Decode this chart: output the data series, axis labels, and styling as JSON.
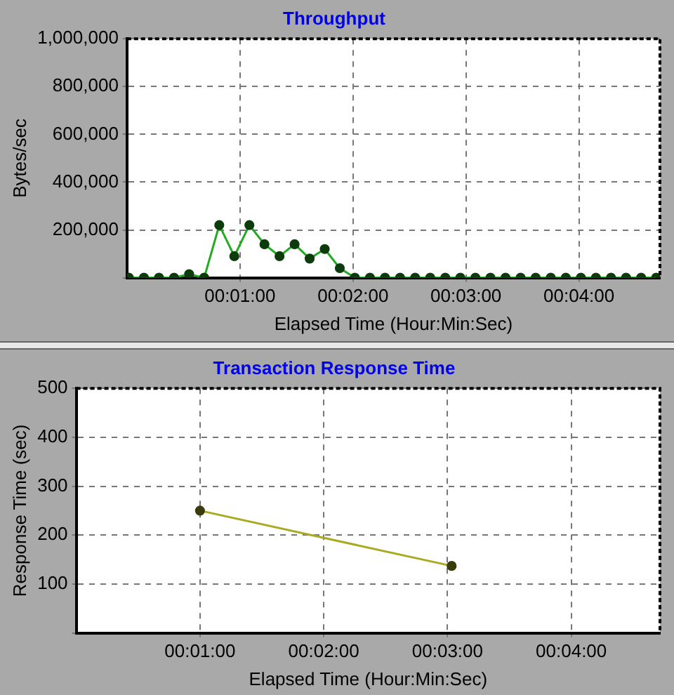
{
  "chart_data": [
    {
      "type": "line",
      "title": "Throughput",
      "xlabel": "Elapsed Time (Hour:Min:Sec)",
      "ylabel": "Bytes/sec",
      "x": [
        1,
        9,
        17,
        25,
        33,
        41,
        49,
        57,
        65,
        73,
        81,
        89,
        97,
        105,
        113,
        121,
        129,
        137,
        145,
        153,
        161,
        169,
        177,
        185,
        193,
        201,
        209,
        217,
        225,
        233,
        241,
        249,
        257,
        265,
        273,
        281
      ],
      "series": [
        {
          "color": "#22aa22",
          "values": [
            0,
            0,
            0,
            0,
            15000,
            0,
            220000,
            90000,
            220000,
            140000,
            90000,
            140000,
            80000,
            120000,
            40000,
            0,
            0,
            0,
            0,
            0,
            0,
            0,
            0,
            0,
            0,
            0,
            0,
            0,
            0,
            0,
            0,
            0,
            0,
            0,
            0,
            0
          ]
        }
      ],
      "xlim": [
        0,
        283
      ],
      "xticks": [
        {
          "value": 60,
          "label": "00:01:00"
        },
        {
          "value": 120,
          "label": "00:02:00"
        },
        {
          "value": 180,
          "label": "00:03:00"
        },
        {
          "value": 240,
          "label": "00:04:00"
        }
      ],
      "ylim": [
        0,
        1000000
      ],
      "yticks": [
        {
          "value": 0,
          "label": null
        },
        {
          "value": 200000,
          "label": "200,000"
        },
        {
          "value": 400000,
          "label": "400,000"
        },
        {
          "value": 600000,
          "label": "600,000"
        },
        {
          "value": 800000,
          "label": "800,000"
        },
        {
          "value": 1000000,
          "label": "1,000,000"
        }
      ],
      "grid": true,
      "legend": false,
      "marker": "circle",
      "line_style": "solid"
    },
    {
      "type": "line",
      "title": "Transaction Response Time",
      "xlabel": "Elapsed Time (Hour:Min:Sec)",
      "ylabel": "Response Time (sec)",
      "x": [
        60,
        182
      ],
      "series": [
        {
          "color": "#aaaa22",
          "values": [
            250,
            137
          ]
        }
      ],
      "xlim": [
        0,
        283
      ],
      "xticks": [
        {
          "value": 60,
          "label": "00:01:00"
        },
        {
          "value": 120,
          "label": "00:02:00"
        },
        {
          "value": 180,
          "label": "00:03:00"
        },
        {
          "value": 240,
          "label": "00:04:00"
        }
      ],
      "ylim": [
        0,
        500
      ],
      "yticks": [
        {
          "value": 0,
          "label": null
        },
        100,
        200,
        300,
        400,
        500
      ],
      "grid": true,
      "legend": false,
      "marker": "circle",
      "line_style": "solid"
    }
  ]
}
